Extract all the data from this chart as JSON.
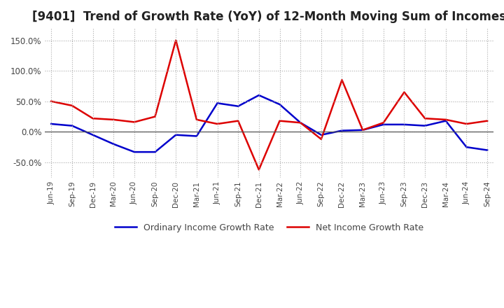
{
  "title": "[9401]  Trend of Growth Rate (YoY) of 12-Month Moving Sum of Incomes",
  "title_fontsize": 12,
  "ylim": [
    -75,
    170
  ],
  "yticks": [
    -50,
    0,
    50,
    100,
    150
  ],
  "ytick_labels": [
    "-50.0%",
    "0.0%",
    "50.0%",
    "100.0%",
    "150.0%"
  ],
  "background_color": "#ffffff",
  "grid_color": "#aaaaaa",
  "ordinary_color": "#0000cc",
  "net_color": "#dd0000",
  "x_labels": [
    "Jun-19",
    "Sep-19",
    "Dec-19",
    "Mar-20",
    "Jun-20",
    "Sep-20",
    "Dec-20",
    "Mar-21",
    "Jun-21",
    "Sep-21",
    "Dec-21",
    "Mar-22",
    "Jun-22",
    "Sep-22",
    "Dec-22",
    "Mar-23",
    "Jun-23",
    "Sep-23",
    "Dec-23",
    "Mar-24",
    "Jun-24",
    "Sep-24"
  ],
  "ordinary_income_growth": [
    13,
    10,
    -5,
    -20,
    -33,
    -33,
    -5,
    -7,
    47,
    42,
    60,
    45,
    15,
    -5,
    2,
    3,
    12,
    12,
    10,
    18,
    -25,
    -30
  ],
  "net_income_growth": [
    50,
    43,
    22,
    20,
    16,
    25,
    150,
    20,
    13,
    18,
    -62,
    18,
    15,
    -12,
    85,
    3,
    15,
    65,
    22,
    20,
    13,
    18
  ],
  "legend_ordinary": "Ordinary Income Growth Rate",
  "legend_net": "Net Income Growth Rate"
}
